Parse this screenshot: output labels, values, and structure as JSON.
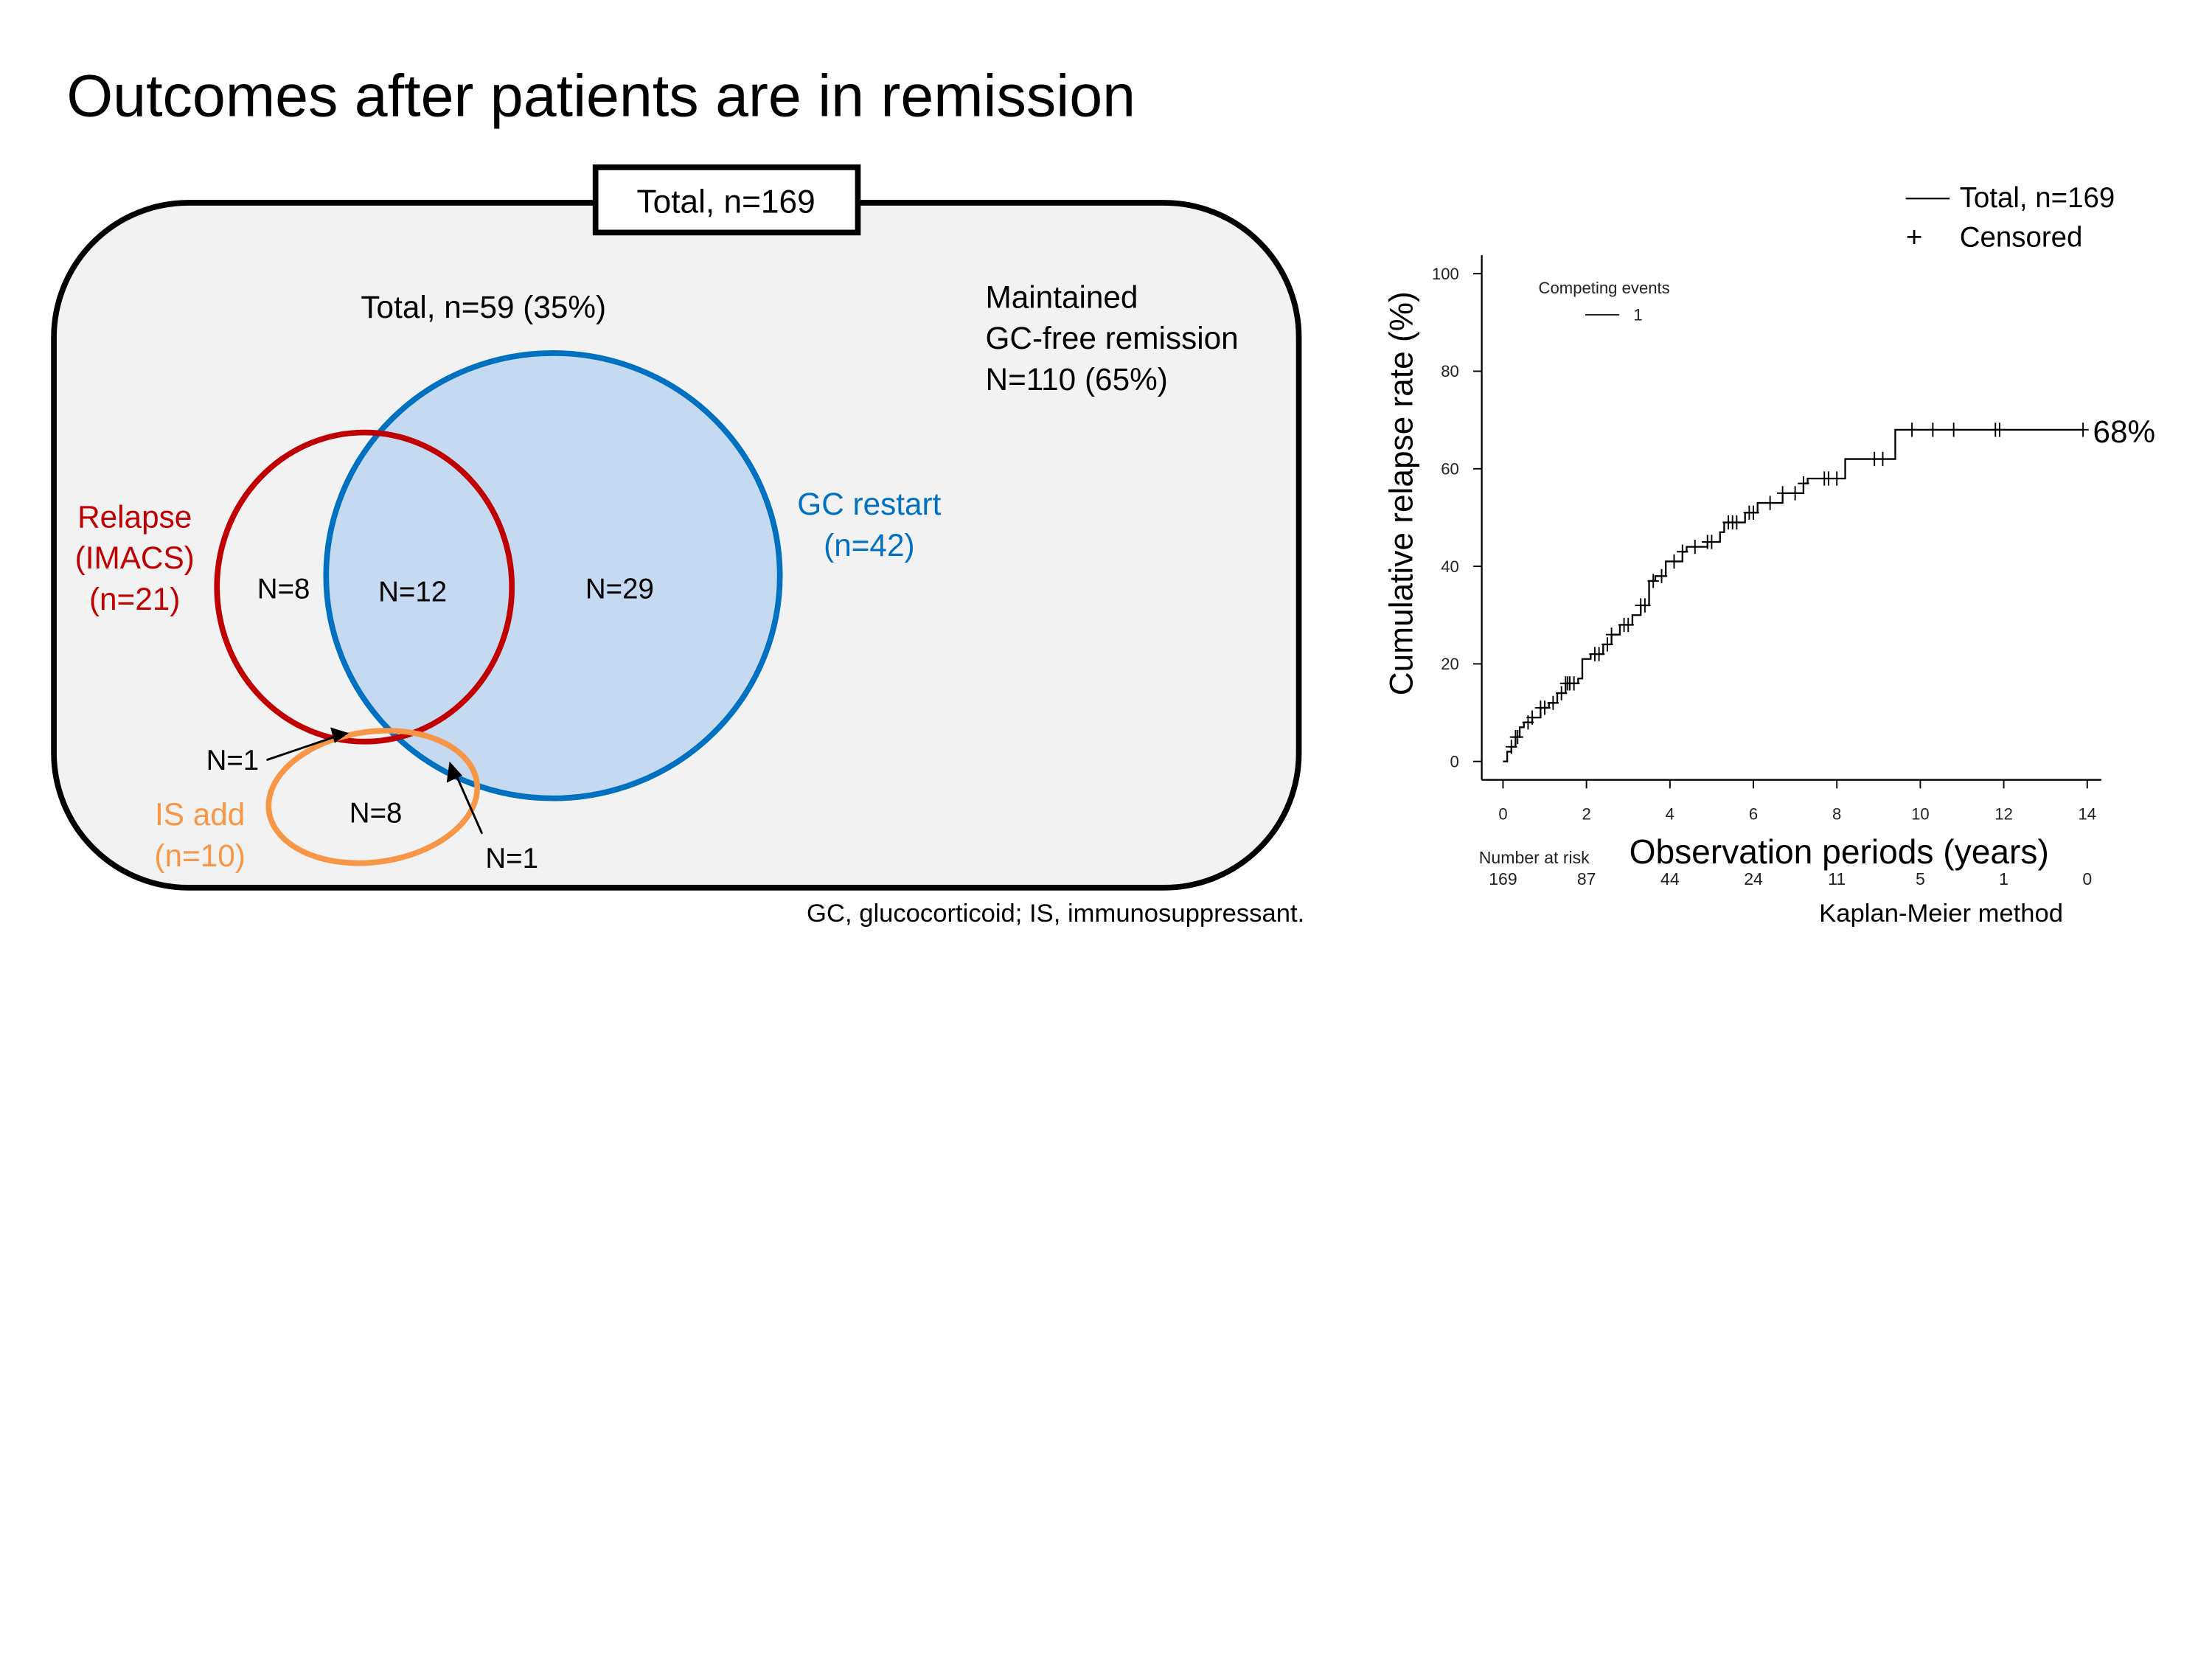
{
  "slide_title": "Outcomes after patients are in remission",
  "venn": {
    "total_box": "Total, n=169",
    "subtotal": "Total, n=59 (35%)",
    "maintained": [
      "Maintained",
      "GC-free remission",
      "N=110 (65%)"
    ],
    "relapse_label": [
      "Relapse",
      "(IMACS)",
      "(n=21)"
    ],
    "gc_restart_label": [
      "GC restart",
      "(n=42)"
    ],
    "is_add_label": [
      "IS add",
      "(n=10)"
    ],
    "regions": {
      "relapse_only": "N=8",
      "relapse_gc": "N=12",
      "gc_only": "N=29",
      "is_only": "N=8",
      "relapse_is": "N=1",
      "gc_is": "N=1"
    },
    "colors": {
      "relapse": "#c00000",
      "gc_restart": "#0070c0",
      "gc_fill": "#c5d9f1",
      "is_add": "#f79646",
      "panel": "#f2f2f2"
    },
    "footnote": "GC, glucocorticoid; IS, immunosuppressant."
  },
  "chart_data": {
    "type": "line",
    "step": true,
    "ylabel": "Cumulative relapse  rate (%)",
    "xlabel": "Observation periods (years)",
    "xlim": [
      0,
      14
    ],
    "ylim": [
      0,
      100
    ],
    "xticks": [
      "0",
      "2",
      "4",
      "6",
      "8",
      "10",
      "12",
      "14"
    ],
    "yticks": [
      "0",
      "20",
      "40",
      "60",
      "80",
      "100"
    ],
    "legend": {
      "total": "Total, n=169",
      "censored_symbol": "+",
      "censored": "Censored"
    },
    "inner_legend": {
      "title": "Competing events",
      "entry": "1"
    },
    "end_label": "68%",
    "series": [
      {
        "name": "Total, n=169",
        "steps": [
          [
            0,
            0
          ],
          [
            0.1,
            2
          ],
          [
            0.2,
            3
          ],
          [
            0.3,
            5
          ],
          [
            0.4,
            7
          ],
          [
            0.5,
            8
          ],
          [
            0.7,
            9
          ],
          [
            0.9,
            11
          ],
          [
            1.1,
            12
          ],
          [
            1.3,
            14
          ],
          [
            1.5,
            16
          ],
          [
            1.8,
            17
          ],
          [
            1.9,
            21
          ],
          [
            2.1,
            22
          ],
          [
            2.4,
            24
          ],
          [
            2.6,
            26
          ],
          [
            2.8,
            28
          ],
          [
            3.1,
            30
          ],
          [
            3.3,
            32
          ],
          [
            3.5,
            37
          ],
          [
            3.65,
            38
          ],
          [
            3.9,
            41
          ],
          [
            4.3,
            43
          ],
          [
            4.4,
            44
          ],
          [
            4.9,
            45
          ],
          [
            5.2,
            47
          ],
          [
            5.3,
            49
          ],
          [
            5.8,
            51
          ],
          [
            6.1,
            53
          ],
          [
            6.7,
            55
          ],
          [
            7.2,
            57
          ],
          [
            7.3,
            58
          ],
          [
            8.2,
            62
          ],
          [
            9.4,
            68
          ],
          [
            13.9,
            68
          ]
        ],
        "censored": [
          0.2,
          0.3,
          0.35,
          0.6,
          0.7,
          0.9,
          1.0,
          1.2,
          1.4,
          1.5,
          1.55,
          1.6,
          1.7,
          2.2,
          2.3,
          2.5,
          2.6,
          2.9,
          3.0,
          3.3,
          3.4,
          3.6,
          3.8,
          4.1,
          4.3,
          4.6,
          4.9,
          5.0,
          5.4,
          5.5,
          5.6,
          5.9,
          6.0,
          6.4,
          6.7,
          7.0,
          7.2,
          7.7,
          7.8,
          8.0,
          8.9,
          9.1,
          9.8,
          10.3,
          10.8,
          11.8,
          11.9,
          13.9
        ]
      }
    ],
    "at_risk": {
      "label": "Number at risk",
      "values": [
        "169",
        "87",
        "44",
        "24",
        "11",
        "5",
        "1",
        "0"
      ]
    },
    "method": "Kaplan-Meier method"
  }
}
